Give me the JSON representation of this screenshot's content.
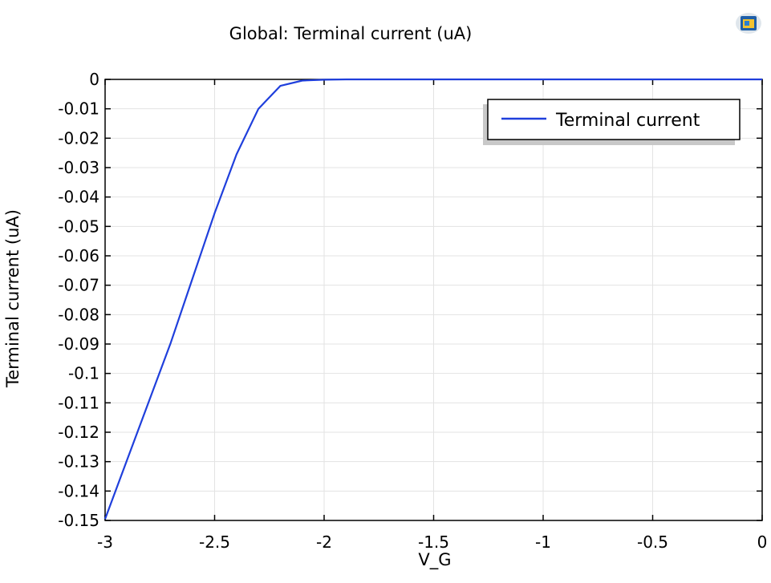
{
  "chart_data": {
    "type": "line",
    "title": "Global: Terminal current (uA)",
    "xlabel": "V_G",
    "ylabel": "Terminal current (uA)",
    "xlim": [
      -3,
      0
    ],
    "ylim": [
      -0.15,
      0
    ],
    "x_ticks": [
      -3,
      -2.5,
      -2,
      -1.5,
      -1,
      -0.5,
      0
    ],
    "x_tick_labels": [
      "-3",
      "-2.5",
      "-2",
      "-1.5",
      "-1",
      "-0.5",
      "0"
    ],
    "y_ticks": [
      0,
      -0.01,
      -0.02,
      -0.03,
      -0.04,
      -0.05,
      -0.06,
      -0.07,
      -0.08,
      -0.09,
      -0.1,
      -0.11,
      -0.12,
      -0.13,
      -0.14,
      -0.15
    ],
    "y_tick_labels": [
      "0",
      "-0.01",
      "-0.02",
      "-0.03",
      "-0.04",
      "-0.05",
      "-0.06",
      "-0.07",
      "-0.08",
      "-0.09",
      "-0.1",
      "-0.11",
      "-0.12",
      "-0.13",
      "-0.14",
      "-0.15"
    ],
    "grid": true,
    "legend_position": "top-right",
    "series": [
      {
        "name": "Terminal current",
        "color": "#1f3fdc",
        "x": [
          -3,
          -2.9,
          -2.8,
          -2.7,
          -2.6,
          -2.5,
          -2.4,
          -2.3,
          -2.2,
          -2.1,
          -2.0,
          -1.9,
          -1.8,
          -1.5,
          -1.0,
          -0.5,
          0
        ],
        "y": [
          -0.1495,
          -0.1295,
          -0.1095,
          -0.0895,
          -0.0675,
          -0.0455,
          -0.0255,
          -0.01,
          -0.0022,
          -0.0004,
          -0.0001,
          0,
          0,
          0,
          0,
          0,
          0
        ]
      }
    ]
  },
  "logo_icon": "comsol-logo-icon"
}
